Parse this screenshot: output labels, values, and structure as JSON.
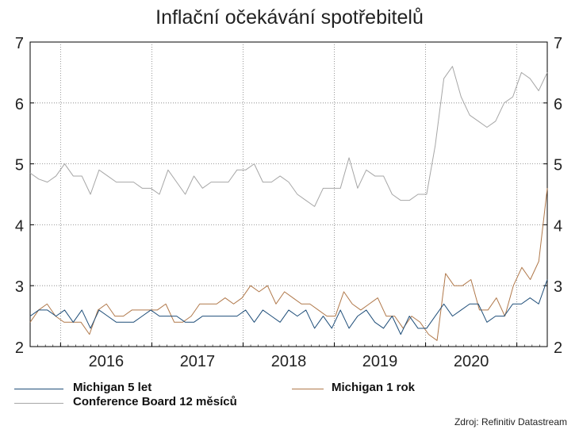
{
  "title": "Inflační očekávání spotřebitelů",
  "source": "Zdroj: Refinitiv Datastream",
  "colors": {
    "michigan5": "#1f4e79",
    "michigan1": "#b0784a",
    "conference": "#a6a6a6",
    "grid": "#7f7f7f"
  },
  "chart_data": {
    "type": "line",
    "ylim": [
      2,
      7
    ],
    "yticks": [
      2,
      3,
      4,
      5,
      6,
      7
    ],
    "grid": true,
    "x_start": "2015-09",
    "x_end": "2021-05",
    "year_labels": [
      "2016",
      "2017",
      "2018",
      "2019",
      "2020"
    ],
    "legend_position": "bottom",
    "series": [
      {
        "name": "Michigan 5 let",
        "color_key": "michigan5",
        "values": [
          2.5,
          2.6,
          2.6,
          2.5,
          2.6,
          2.4,
          2.6,
          2.3,
          2.6,
          2.5,
          2.4,
          2.4,
          2.4,
          2.5,
          2.6,
          2.5,
          2.5,
          2.5,
          2.4,
          2.4,
          2.5,
          2.5,
          2.5,
          2.5,
          2.5,
          2.6,
          2.4,
          2.6,
          2.5,
          2.4,
          2.6,
          2.5,
          2.6,
          2.3,
          2.5,
          2.3,
          2.6,
          2.3,
          2.5,
          2.6,
          2.4,
          2.3,
          2.5,
          2.2,
          2.5,
          2.3,
          2.3,
          2.5,
          2.7,
          2.5,
          2.6,
          2.7,
          2.7,
          2.4,
          2.5,
          2.5,
          2.7,
          2.7,
          2.8,
          2.7,
          3.1
        ]
      },
      {
        "name": "Michigan 1 rok",
        "color_key": "michigan1",
        "values": [
          2.4,
          2.6,
          2.7,
          2.5,
          2.4,
          2.4,
          2.4,
          2.2,
          2.6,
          2.7,
          2.5,
          2.5,
          2.6,
          2.6,
          2.6,
          2.6,
          2.7,
          2.4,
          2.4,
          2.5,
          2.7,
          2.7,
          2.7,
          2.8,
          2.7,
          2.8,
          3.0,
          2.9,
          3.0,
          2.7,
          2.9,
          2.8,
          2.7,
          2.7,
          2.6,
          2.5,
          2.5,
          2.9,
          2.7,
          2.6,
          2.7,
          2.8,
          2.5,
          2.5,
          2.3,
          2.5,
          2.4,
          2.2,
          2.1,
          3.2,
          3.0,
          3.0,
          3.1,
          2.6,
          2.6,
          2.8,
          2.5,
          3.0,
          3.3,
          3.1,
          3.4,
          4.6
        ]
      },
      {
        "name": "Conference Board 12 měsíců",
        "color_key": "conference",
        "values": [
          4.85,
          4.75,
          4.7,
          4.8,
          5.0,
          4.8,
          4.8,
          4.5,
          4.9,
          4.8,
          4.7,
          4.7,
          4.7,
          4.6,
          4.6,
          4.5,
          4.9,
          4.7,
          4.5,
          4.8,
          4.6,
          4.7,
          4.7,
          4.7,
          4.9,
          4.9,
          5.0,
          4.7,
          4.7,
          4.8,
          4.7,
          4.5,
          4.4,
          4.3,
          4.6,
          4.6,
          4.6,
          5.1,
          4.6,
          4.9,
          4.8,
          4.8,
          4.5,
          4.4,
          4.4,
          4.5,
          4.5,
          5.3,
          6.4,
          6.6,
          6.1,
          5.8,
          5.7,
          5.6,
          5.7,
          6.0,
          6.1,
          6.5,
          6.4,
          6.2,
          6.5
        ]
      }
    ]
  }
}
